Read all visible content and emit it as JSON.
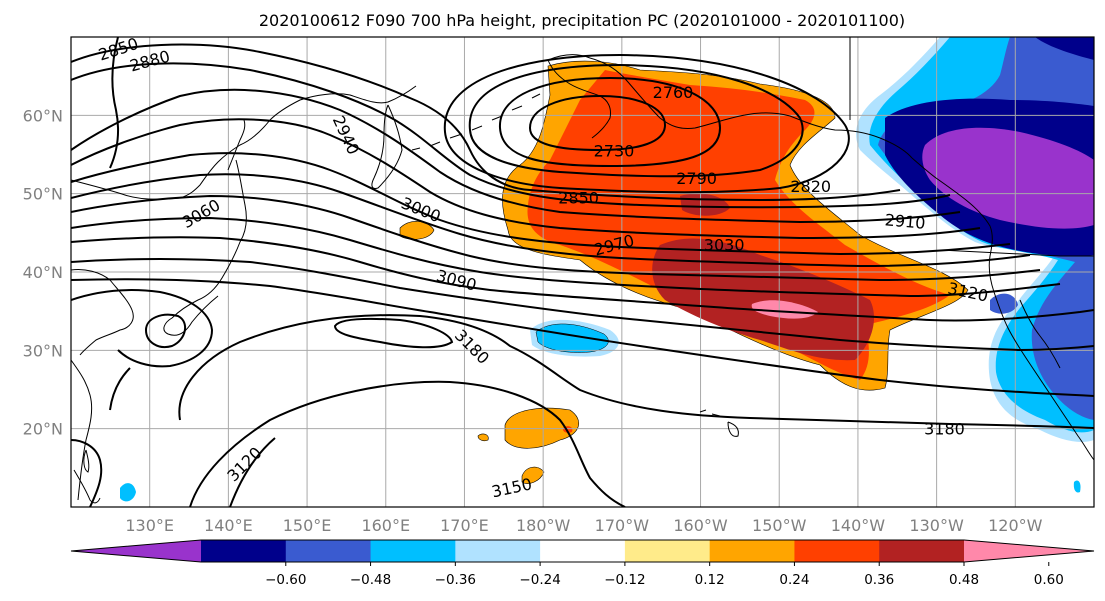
{
  "title": "2020100612 F090 700 hPa height, precipitation PC (2020101000 - 2020101100)",
  "map": {
    "extent": {
      "lon_min": 120,
      "lon_max": 250,
      "lat_min": 10,
      "lat_max": 70
    },
    "lon_labels": [
      {
        "lon": 130,
        "text": "130°E"
      },
      {
        "lon": 140,
        "text": "140°E"
      },
      {
        "lon": 150,
        "text": "150°E"
      },
      {
        "lon": 160,
        "text": "160°E"
      },
      {
        "lon": 170,
        "text": "170°E"
      },
      {
        "lon": 180,
        "text": "180°W"
      },
      {
        "lon": 190,
        "text": "170°W"
      },
      {
        "lon": 200,
        "text": "160°W"
      },
      {
        "lon": 210,
        "text": "150°W"
      },
      {
        "lon": 220,
        "text": "140°W"
      },
      {
        "lon": 230,
        "text": "130°W"
      },
      {
        "lon": 240,
        "text": "120°W"
      }
    ],
    "lat_labels": [
      {
        "lat": 20,
        "text": "20°N"
      },
      {
        "lat": 30,
        "text": "30°N"
      },
      {
        "lat": 40,
        "text": "40°N"
      },
      {
        "lat": 50,
        "text": "50°N"
      },
      {
        "lat": 60,
        "text": "60°N"
      }
    ],
    "contour_labels": [
      {
        "text": "2850",
        "lon": 126,
        "lat": 68.5,
        "rot": -18
      },
      {
        "text": "2880",
        "lon": 130,
        "lat": 67,
        "rot": -15
      },
      {
        "text": "2940",
        "lon": 155,
        "lat": 57.5,
        "rot": 65
      },
      {
        "text": "3060",
        "lon": 136.5,
        "lat": 47.5,
        "rot": -30
      },
      {
        "text": "3000",
        "lon": 164.5,
        "lat": 48,
        "rot": 22
      },
      {
        "text": "3090",
        "lon": 169,
        "lat": 39,
        "rot": 15
      },
      {
        "text": "3180",
        "lon": 171,
        "lat": 30.5,
        "rot": 45
      },
      {
        "text": "3120",
        "lon": 142,
        "lat": 15.5,
        "rot": -45
      },
      {
        "text": "3150",
        "lon": 176,
        "lat": 12.5,
        "rot": -12
      },
      {
        "text": "2760",
        "lon": 196.5,
        "lat": 63,
        "rot": 0
      },
      {
        "text": "2730",
        "lon": 189,
        "lat": 55.5,
        "rot": 0
      },
      {
        "text": "2790",
        "lon": 199.5,
        "lat": 52,
        "rot": 0
      },
      {
        "text": "2820",
        "lon": 214,
        "lat": 51,
        "rot": 0
      },
      {
        "text": "2850",
        "lon": 184.5,
        "lat": 49.5,
        "rot": 0
      },
      {
        "text": "2910",
        "lon": 226,
        "lat": 46.5,
        "rot": 5
      },
      {
        "text": "2970",
        "lon": 189,
        "lat": 43.5,
        "rot": -15
      },
      {
        "text": "3030",
        "lon": 203,
        "lat": 43.5,
        "rot": 0
      },
      {
        "text": "3120",
        "lon": 234,
        "lat": 37.5,
        "rot": 12
      },
      {
        "text": "3180",
        "lon": 231,
        "lat": 20,
        "rot": 0
      }
    ]
  },
  "colorbar": {
    "colors": [
      "#9933cc",
      "#00008b",
      "#3a5bd0",
      "#00bfff",
      "#b0e2ff",
      "#ffffff",
      "#ffeb8a",
      "#ffa500",
      "#ff4000",
      "#b22222",
      "#ff88aa"
    ],
    "tick_labels": [
      "−0.60",
      "−0.48",
      "−0.36",
      "−0.24",
      "−0.12",
      "0.12",
      "0.24",
      "0.36",
      "0.48",
      "0.60"
    ]
  },
  "colors": {
    "gridline": "#a9a9a9",
    "coastline": "#000000",
    "contour": "#000000"
  }
}
